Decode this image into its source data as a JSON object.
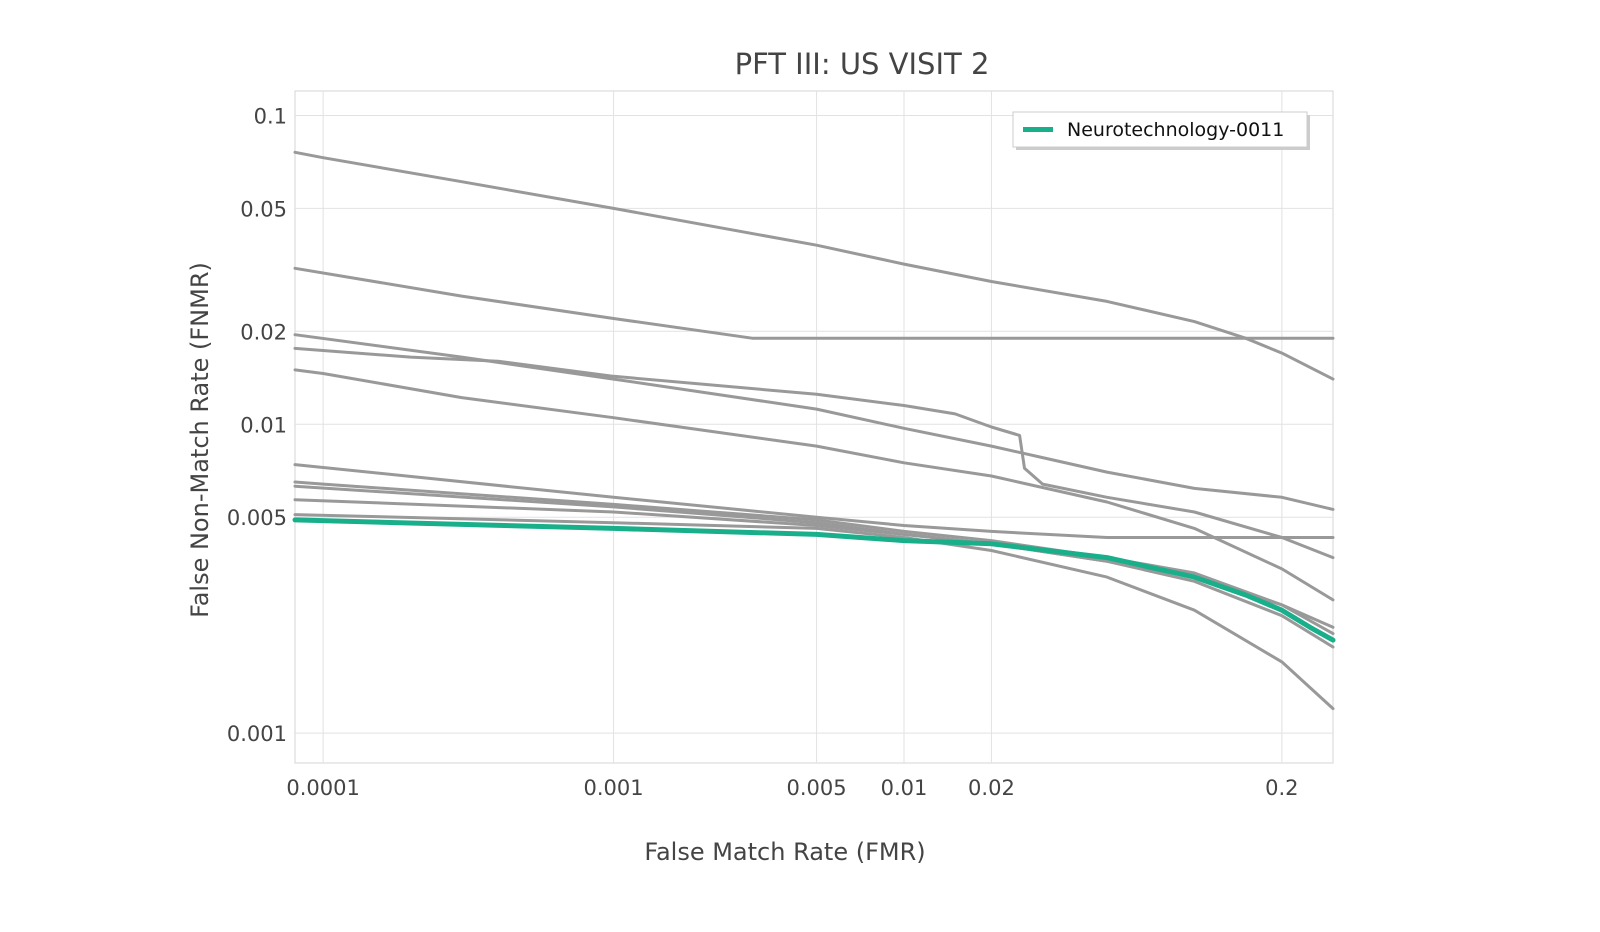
{
  "chart_data": {
    "type": "line",
    "title": "PFT III: US VISIT 2",
    "xlabel": "False Match Rate (FMR)",
    "ylabel": "False Non-Match Rate (FNMR)",
    "x_scale": "log",
    "y_scale": "log",
    "xlim": [
      8e-05,
      0.3
    ],
    "ylim": [
      0.0008,
      0.12
    ],
    "x_ticks": [
      {
        "value": 0.0001,
        "label": "0.0001"
      },
      {
        "value": 0.001,
        "label": "0.001"
      },
      {
        "value": 0.005,
        "label": "0.005"
      },
      {
        "value": 0.01,
        "label": "0.01"
      },
      {
        "value": 0.02,
        "label": "0.02"
      },
      {
        "value": 0.2,
        "label": "0.2"
      }
    ],
    "y_ticks": [
      {
        "value": 0.1,
        "label": "0.1"
      },
      {
        "value": 0.05,
        "label": "0.05"
      },
      {
        "value": 0.02,
        "label": "0.02"
      },
      {
        "value": 0.01,
        "label": "0.01"
      },
      {
        "value": 0.005,
        "label": "0.005"
      },
      {
        "value": 0.001,
        "label": "0.001"
      }
    ],
    "grid": true,
    "legend_position": "top-right",
    "highlight_color": "#1aaf8b",
    "other_color": "#999999",
    "series": [
      {
        "x": [
          8e-05,
          0.0001,
          0.0003,
          0.001,
          0.005,
          0.01,
          0.02,
          0.05,
          0.1,
          0.15,
          0.2,
          0.3
        ],
        "y": [
          0.076,
          0.073,
          0.061,
          0.05,
          0.038,
          0.033,
          0.029,
          0.025,
          0.0215,
          0.019,
          0.017,
          0.014
        ]
      },
      {
        "x": [
          8e-05,
          0.0003,
          0.001,
          0.003,
          0.01,
          0.05,
          0.1,
          0.3
        ],
        "y": [
          0.032,
          0.026,
          0.022,
          0.019,
          0.019,
          0.019,
          0.019,
          0.019
        ]
      },
      {
        "x": [
          8e-05,
          0.0003,
          0.001,
          0.005,
          0.01,
          0.02,
          0.03,
          0.05,
          0.1,
          0.2,
          0.3
        ],
        "y": [
          0.0195,
          0.0165,
          0.014,
          0.0112,
          0.0097,
          0.0085,
          0.0078,
          0.007,
          0.0062,
          0.0058,
          0.0053
        ]
      },
      {
        "x": [
          8e-05,
          0.0002,
          0.0004,
          0.001,
          0.005,
          0.01,
          0.015,
          0.02,
          0.025,
          0.026,
          0.03,
          0.05,
          0.1,
          0.2,
          0.3
        ],
        "y": [
          0.0176,
          0.0165,
          0.016,
          0.0143,
          0.0125,
          0.0115,
          0.0108,
          0.0098,
          0.0092,
          0.0072,
          0.0064,
          0.0058,
          0.0052,
          0.0043,
          0.0037
        ]
      },
      {
        "x": [
          8e-05,
          0.0001,
          0.0003,
          0.001,
          0.005,
          0.01,
          0.02,
          0.05,
          0.1,
          0.2,
          0.3
        ],
        "y": [
          0.015,
          0.0146,
          0.0122,
          0.0105,
          0.0085,
          0.0075,
          0.0068,
          0.0056,
          0.0046,
          0.0034,
          0.0027
        ]
      },
      {
        "x": [
          8e-05,
          0.001,
          0.005,
          0.01,
          0.02,
          0.05,
          0.1,
          0.2,
          0.3
        ],
        "y": [
          0.0074,
          0.0058,
          0.005,
          0.0047,
          0.0045,
          0.0043,
          0.0043,
          0.0043,
          0.0043
        ]
      },
      {
        "x": [
          8e-05,
          0.0001,
          0.001,
          0.005,
          0.01,
          0.02,
          0.05,
          0.1,
          0.2,
          0.3
        ],
        "y": [
          0.0065,
          0.0064,
          0.0055,
          0.0049,
          0.0045,
          0.0042,
          0.0037,
          0.0033,
          0.0026,
          0.0022
        ]
      },
      {
        "x": [
          8e-05,
          0.001,
          0.005,
          0.01,
          0.02,
          0.05,
          0.1,
          0.2,
          0.3
        ],
        "y": [
          0.0063,
          0.0054,
          0.0048,
          0.0044,
          0.0041,
          0.0036,
          0.0032,
          0.0026,
          0.0021
        ]
      },
      {
        "x": [
          8e-05,
          0.001,
          0.005,
          0.01,
          0.02,
          0.05,
          0.1,
          0.2,
          0.3
        ],
        "y": [
          0.0057,
          0.0052,
          0.0047,
          0.0044,
          0.0041,
          0.0036,
          0.0031,
          0.0024,
          0.0019
        ]
      },
      {
        "x": [
          8e-05,
          0.001,
          0.005,
          0.01,
          0.02,
          0.05,
          0.1,
          0.2,
          0.3
        ],
        "y": [
          0.0051,
          0.0048,
          0.0046,
          0.0043,
          0.0039,
          0.0032,
          0.0025,
          0.0017,
          0.0012
        ]
      },
      {
        "name": "Neurotechnology-0011",
        "highlight": true,
        "x": [
          8e-05,
          0.001,
          0.005,
          0.01,
          0.02,
          0.05,
          0.1,
          0.15,
          0.2,
          0.25,
          0.3
        ],
        "y": [
          0.0049,
          0.0046,
          0.0044,
          0.0042,
          0.0041,
          0.0037,
          0.0032,
          0.0028,
          0.0025,
          0.0022,
          0.002
        ]
      }
    ]
  }
}
